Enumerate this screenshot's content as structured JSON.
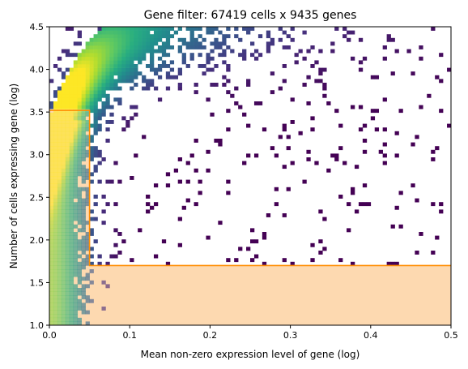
{
  "chart_data": {
    "type": "heatmap",
    "title": "Gene filter: 67419 cells x 9435 genes",
    "xlabel": "Mean non-zero expression level of gene (log)",
    "ylabel": "Number of cells expressing gene (log)",
    "xlim": [
      0,
      0.5
    ],
    "ylim": [
      1.0,
      4.5
    ],
    "xticks": [
      "0.0",
      "0.1",
      "0.2",
      "0.3",
      "0.4",
      "0.5"
    ],
    "yticks": [
      "1.0",
      "1.5",
      "2.0",
      "2.5",
      "3.0",
      "3.5",
      "4.0",
      "4.5"
    ],
    "colormap": "viridis",
    "filter_region": {
      "fill_color": "#fdd9b0",
      "edge_color": "#ff8c00",
      "min_cells_log": 1.7,
      "min_mean_expression": 0.05,
      "low_expression_max_cells_log": 3.52
    },
    "grid": false,
    "legend": "none"
  }
}
